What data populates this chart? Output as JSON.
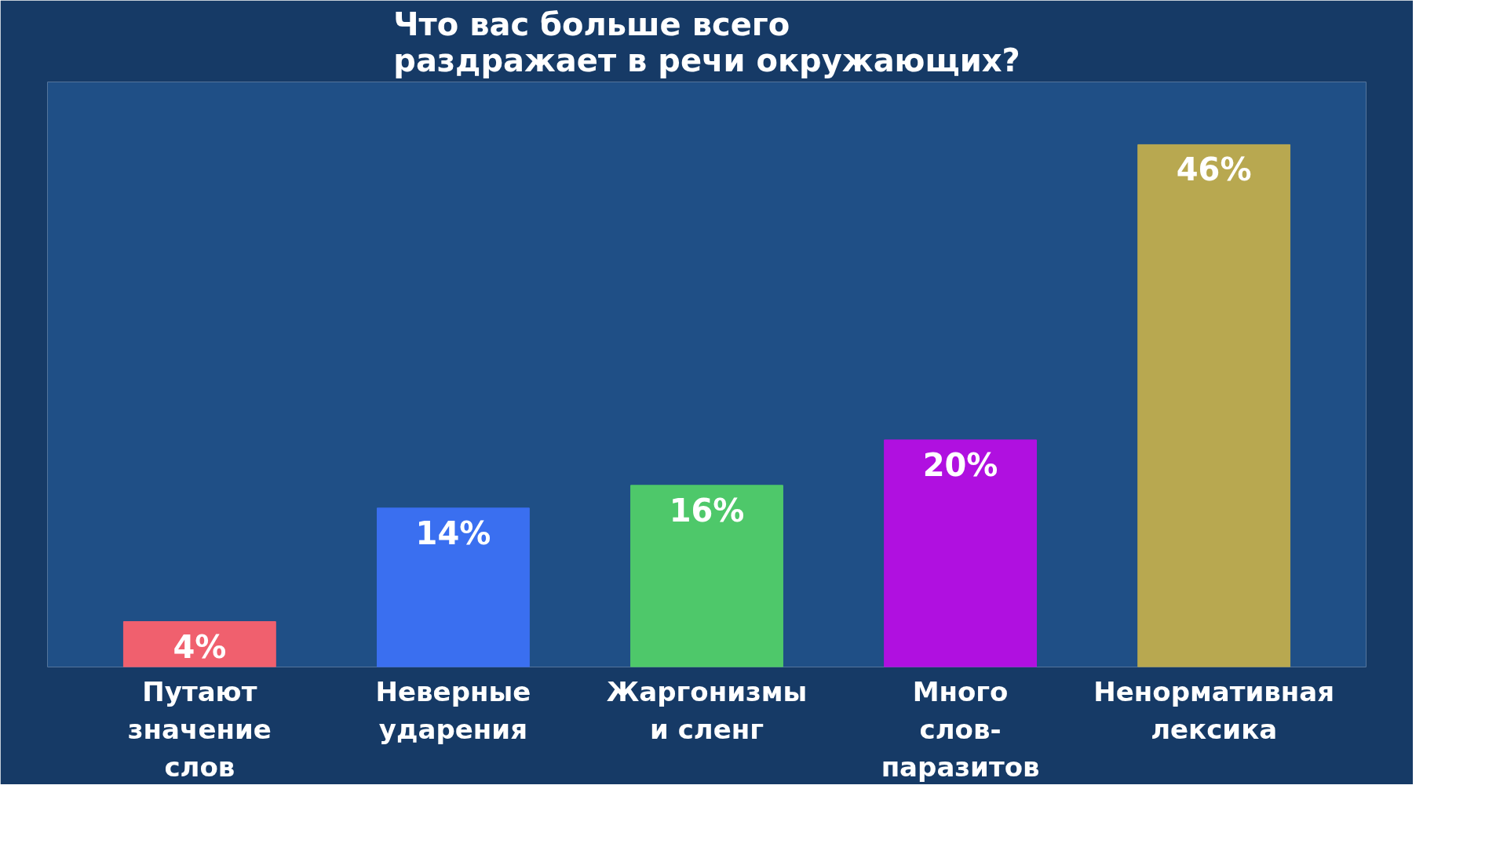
{
  "chart_data": {
    "type": "bar",
    "title": "Что вас больше всего\nраздражает в речи окружающих?",
    "categories": [
      "Путают\nзначение\nслов",
      "Неверные\nударения",
      "Жаргонизмы\nи сленг",
      "Много\nслов-\nпаразитов",
      "Ненормативная\nлексика"
    ],
    "values": [
      4,
      14,
      16,
      20,
      46
    ],
    "colors": [
      "#f0606e",
      "#3a6ff0",
      "#4ec86a",
      "#b010e0",
      "#b8a850"
    ],
    "value_labels": [
      "4%",
      "14%",
      "16%",
      "20%",
      "46%"
    ],
    "grid": false
  }
}
